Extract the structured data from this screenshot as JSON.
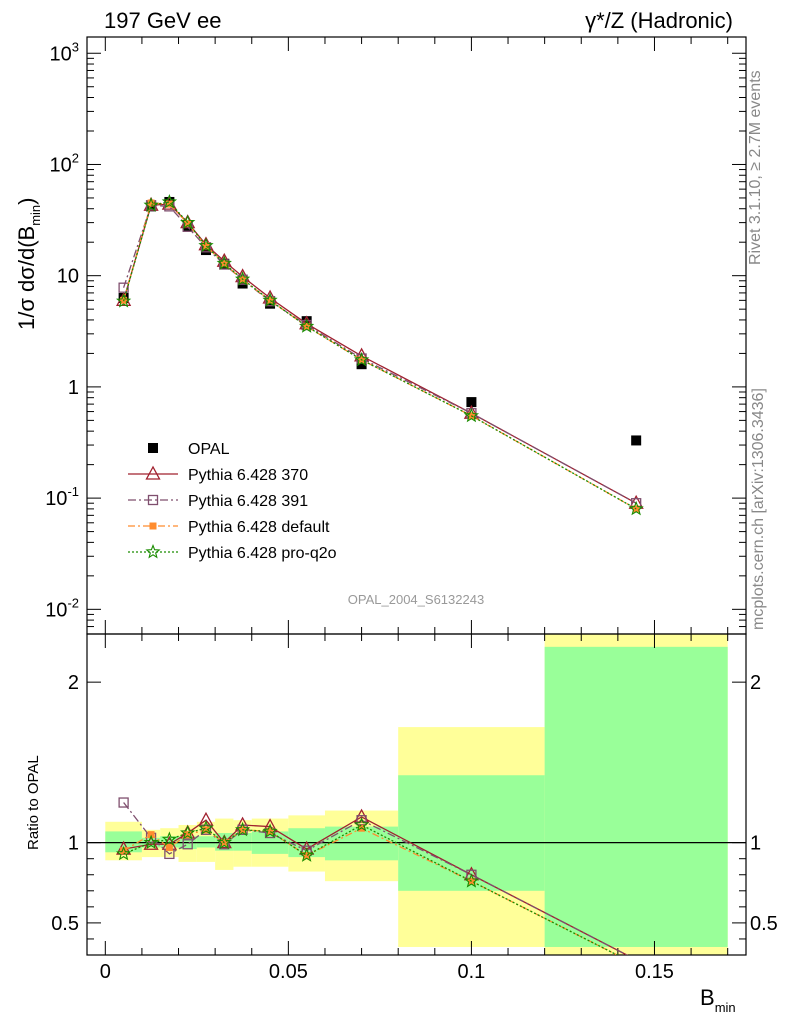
{
  "header": {
    "left": "197 GeV ee",
    "right": "γ*/Z (Hadronic)"
  },
  "side_labels": {
    "rivet": "Rivet 3.1.10, ≥ 2.7M events",
    "mcplots": "mcplots.cern.ch [arXiv:1306.3436]"
  },
  "watermark": "OPAL_2004_S6132243",
  "axes": {
    "ylabel_main": "1/σ dσ/d(B",
    "ylabel_main_sub": "min",
    "ylabel_main_close": ")",
    "ylabel_ratio": "Ratio to OPAL",
    "xlabel": "B",
    "xlabel_sub": "min"
  },
  "legend": [
    {
      "label": "OPAL",
      "color": "#000000"
    },
    {
      "label": "Pythia 6.428 370",
      "color": "#a0202e"
    },
    {
      "label": "Pythia 6.428 391",
      "color": "#7f4f6e"
    },
    {
      "label": "Pythia 6.428 default",
      "color": "#ff8c2e"
    },
    {
      "label": "Pythia 6.428 pro-q2o",
      "color": "#1a8c00"
    }
  ],
  "chart_data": [
    {
      "type": "scatter",
      "panel": "main",
      "y_scale": "log",
      "ylim": [
        0.006,
        1400
      ],
      "xlim": [
        -0.005,
        0.175
      ],
      "y_ticks": [
        "10^-2",
        "10^-1",
        "1",
        "10",
        "10^2",
        "10^3"
      ],
      "x": [
        0.005,
        0.0125,
        0.0175,
        0.0225,
        0.0275,
        0.0325,
        0.0375,
        0.045,
        0.055,
        0.07,
        0.1,
        0.145
      ],
      "series": [
        {
          "name": "OPAL",
          "values": [
            6.3,
            42,
            46,
            28,
            17,
            12.8,
            8.5,
            5.6,
            3.9,
            1.6,
            0.73,
            0.33
          ]
        },
        {
          "name": "Pythia 6.428 370",
          "values": [
            6.0,
            43,
            44,
            30,
            19,
            13.5,
            9.8,
            6.3,
            3.7,
            1.9,
            0.58,
            0.09
          ]
        },
        {
          "name": "Pythia 6.428 391",
          "values": [
            7.8,
            43,
            42,
            27.5,
            18,
            12.6,
            9.2,
            5.9,
            3.6,
            1.8,
            0.58,
            0.09
          ]
        },
        {
          "name": "Pythia 6.428 default",
          "values": [
            6.0,
            45,
            44,
            29.5,
            18.5,
            12.8,
            9.2,
            6.0,
            3.5,
            1.75,
            0.55,
            0.08
          ]
        },
        {
          "name": "Pythia 6.428 pro-q2o",
          "values": [
            5.9,
            43,
            46,
            30,
            18.6,
            12.9,
            9.3,
            6.0,
            3.5,
            1.75,
            0.55,
            0.08
          ]
        }
      ]
    },
    {
      "type": "line",
      "panel": "ratio",
      "ylim": [
        0.3,
        2.3
      ],
      "y_ticks": [
        "0.5",
        "1",
        "2"
      ],
      "x_ticks": [
        "0",
        "0.05",
        "0.1",
        "0.15"
      ],
      "bins": [
        [
          0,
          0.01
        ],
        [
          0.01,
          0.015
        ],
        [
          0.015,
          0.02
        ],
        [
          0.02,
          0.025
        ],
        [
          0.025,
          0.03
        ],
        [
          0.03,
          0.035
        ],
        [
          0.035,
          0.04
        ],
        [
          0.04,
          0.05
        ],
        [
          0.05,
          0.06
        ],
        [
          0.06,
          0.08
        ],
        [
          0.08,
          0.12
        ],
        [
          0.12,
          0.17
        ]
      ],
      "green_band": [
        [
          0.94,
          1.07
        ],
        [
          0.97,
          1.03
        ],
        [
          0.97,
          1.04
        ],
        [
          0.96,
          1.04
        ],
        [
          0.97,
          1.04
        ],
        [
          0.95,
          1.06
        ],
        [
          0.95,
          1.06
        ],
        [
          0.93,
          1.07
        ],
        [
          0.91,
          1.09
        ],
        [
          0.89,
          1.1
        ],
        [
          0.7,
          1.42
        ],
        [
          0.35,
          2.22
        ]
      ],
      "yellow_band": [
        [
          0.89,
          1.13
        ],
        [
          0.91,
          1.08
        ],
        [
          0.91,
          1.09
        ],
        [
          0.88,
          1.11
        ],
        [
          0.88,
          1.13
        ],
        [
          0.83,
          1.15
        ],
        [
          0.85,
          1.14
        ],
        [
          0.85,
          1.15
        ],
        [
          0.82,
          1.17
        ],
        [
          0.76,
          1.2
        ],
        [
          0.35,
          1.72
        ],
        [
          0.3,
          2.3
        ]
      ],
      "x": [
        0.005,
        0.0125,
        0.0175,
        0.0225,
        0.0275,
        0.0325,
        0.0375,
        0.045,
        0.055,
        0.07,
        0.1,
        0.145
      ],
      "series": [
        {
          "name": "Pythia 6.428 370",
          "values": [
            0.96,
            0.99,
            0.99,
            1.06,
            1.14,
            1.0,
            1.11,
            1.1,
            0.96,
            1.16,
            0.8,
            0.27
          ]
        },
        {
          "name": "Pythia 6.428 391",
          "values": [
            1.25,
            1.03,
            0.93,
            0.99,
            1.08,
            0.99,
            1.08,
            1.06,
            0.95,
            1.14,
            0.8,
            0.27
          ]
        },
        {
          "name": "Pythia 6.428 default",
          "values": [
            0.95,
            1.05,
            0.97,
            1.05,
            1.08,
            1.0,
            1.08,
            1.07,
            0.92,
            1.09,
            0.76,
            0.24
          ]
        },
        {
          "name": "Pythia 6.428 pro-q2o",
          "values": [
            0.93,
            1.0,
            1.02,
            1.06,
            1.09,
            1.0,
            1.08,
            1.07,
            0.92,
            1.11,
            0.76,
            0.24
          ]
        }
      ]
    }
  ]
}
